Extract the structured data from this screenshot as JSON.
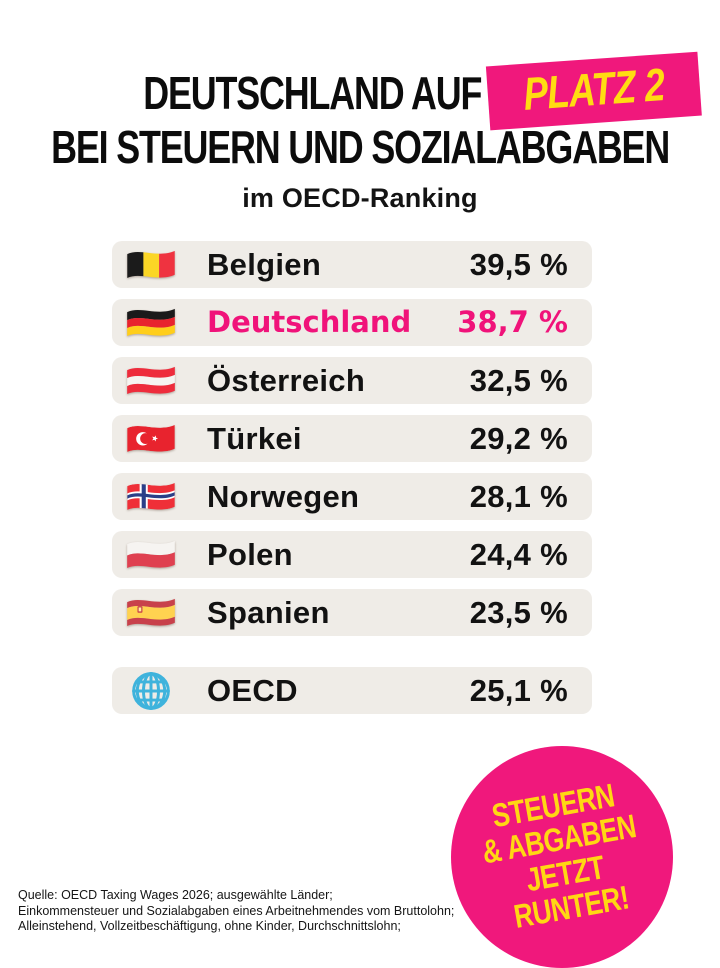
{
  "title": {
    "line1_prefix": "DEUTSCHLAND AUF",
    "line1_highlight": "PLATZ 2",
    "line2": "BEI STEUERN UND SOZIALABGABEN",
    "subtitle": "im OECD-Ranking"
  },
  "colors": {
    "magenta": "#F0187C",
    "yellow": "#FFD713",
    "row_background": "#EFECE7",
    "text": "#121212"
  },
  "ranking": {
    "rows": [
      {
        "country": "Belgien",
        "value": "39,5 %",
        "flag": "belgium",
        "highlight": false
      },
      {
        "country": "Deutschland",
        "value": "38,7 %",
        "flag": "germany",
        "highlight": true
      },
      {
        "country": "Österreich",
        "value": "32,5 %",
        "flag": "austria",
        "highlight": false
      },
      {
        "country": "Türkei",
        "value": "29,2 %",
        "flag": "turkey",
        "highlight": false
      },
      {
        "country": "Norwegen",
        "value": "28,1 %",
        "flag": "norway",
        "highlight": false
      },
      {
        "country": "Polen",
        "value": "24,4 %",
        "flag": "poland",
        "highlight": false
      },
      {
        "country": "Spanien",
        "value": "23,5 %",
        "flag": "spain",
        "highlight": false
      }
    ],
    "summary_row": {
      "country": "OECD",
      "value": "25,1 %",
      "flag": "globe",
      "highlight": false
    }
  },
  "badge": {
    "lines": [
      "STEUERN",
      "& ABGABEN",
      "JETZT",
      "RUNTER!"
    ]
  },
  "source": {
    "lines": [
      "Quelle: OECD Taxing Wages 2026; ausgewählte Länder;",
      "Einkommensteuer und Sozialabgaben eines Arbeitnehmendes vom Bruttolohn;",
      "Alleinstehend, Vollzeitbeschäftigung, ohne Kinder, Durchschnittslohn;"
    ]
  },
  "chart_data": {
    "type": "table",
    "title": "Deutschland auf Platz 2 bei Steuern und Sozialabgaben im OECD-Ranking",
    "categories": [
      "Belgien",
      "Deutschland",
      "Österreich",
      "Türkei",
      "Norwegen",
      "Polen",
      "Spanien",
      "OECD"
    ],
    "values": [
      39.5,
      38.7,
      32.5,
      29.2,
      28.1,
      24.4,
      23.5,
      25.1
    ],
    "unit": "%",
    "highlight_category": "Deutschland",
    "legend": "none",
    "notes": "Ranking list with flag icons; OECD average shown as separate summary row"
  }
}
